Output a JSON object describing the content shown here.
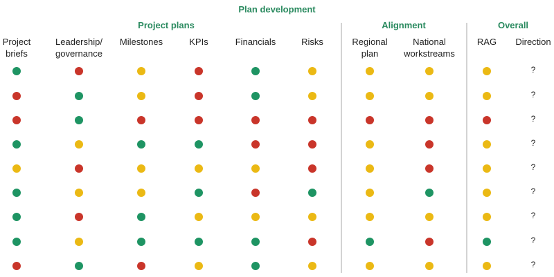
{
  "title": "Plan development",
  "groups": [
    "Project plans",
    "Alignment",
    "Overall"
  ],
  "columns": [
    "Project\nbriefs",
    "Leadership/\ngovernance",
    "Milestones",
    "KPIs",
    "Financials",
    "Risks",
    "Regional\nplan",
    "National\nworkstreams",
    "RAG",
    "Direction"
  ],
  "colors": {
    "G": "#1e9463",
    "R": "#c9352a",
    "Y": "#ebb914"
  },
  "rows": [
    {
      "status": [
        "G",
        "R",
        "Y",
        "R",
        "G",
        "Y",
        "Y",
        "Y",
        "Y"
      ],
      "direction": "?"
    },
    {
      "status": [
        "R",
        "G",
        "Y",
        "R",
        "G",
        "Y",
        "Y",
        "Y",
        "Y"
      ],
      "direction": "?"
    },
    {
      "status": [
        "R",
        "G",
        "R",
        "R",
        "R",
        "R",
        "R",
        "R",
        "R"
      ],
      "direction": "?"
    },
    {
      "status": [
        "G",
        "Y",
        "G",
        "G",
        "R",
        "R",
        "Y",
        "R",
        "Y"
      ],
      "direction": "?"
    },
    {
      "status": [
        "Y",
        "R",
        "Y",
        "Y",
        "Y",
        "R",
        "Y",
        "R",
        "Y"
      ],
      "direction": "?"
    },
    {
      "status": [
        "G",
        "Y",
        "Y",
        "G",
        "R",
        "G",
        "Y",
        "G",
        "Y"
      ],
      "direction": "?"
    },
    {
      "status": [
        "G",
        "R",
        "G",
        "Y",
        "Y",
        "Y",
        "Y",
        "Y",
        "Y"
      ],
      "direction": "?"
    },
    {
      "status": [
        "G",
        "Y",
        "G",
        "G",
        "G",
        "R",
        "G",
        "R",
        "G"
      ],
      "direction": "?"
    },
    {
      "status": [
        "R",
        "G",
        "R",
        "Y",
        "G",
        "Y",
        "Y",
        "Y",
        "Y"
      ],
      "direction": "?"
    }
  ]
}
